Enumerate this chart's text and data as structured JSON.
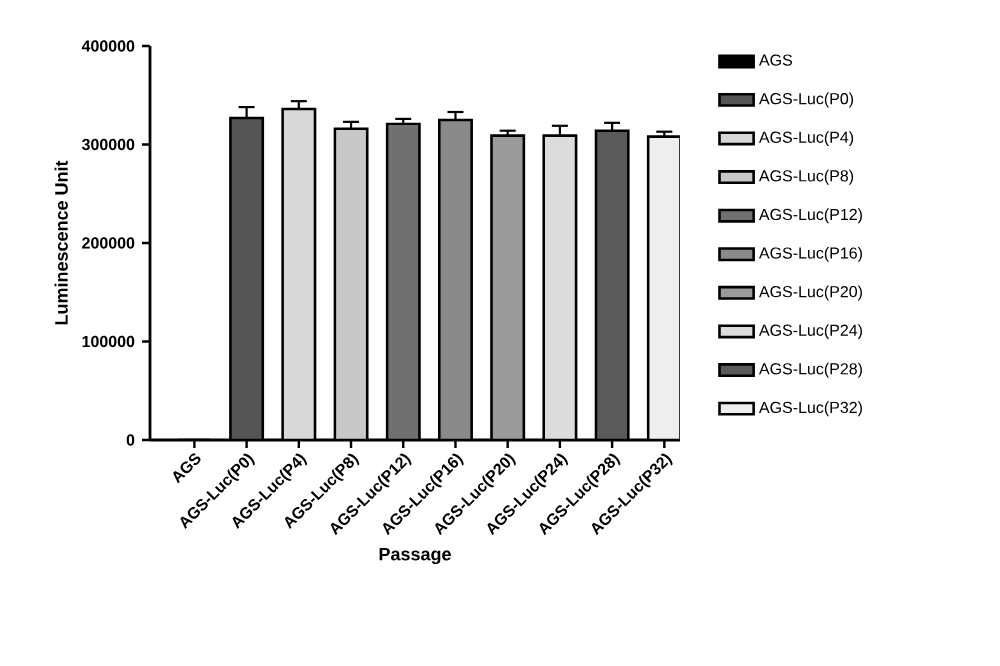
{
  "chart_data": {
    "type": "bar",
    "xlabel": "Passage",
    "ylabel": "Luminescence Unit",
    "categories": [
      "AGS",
      "AGS-Luc(P0)",
      "AGS-Luc(P4)",
      "AGS-Luc(P8)",
      "AGS-Luc(P12)",
      "AGS-Luc(P16)",
      "AGS-Luc(P20)",
      "AGS-Luc(P24)",
      "AGS-Luc(P28)",
      "AGS-Luc(P32)"
    ],
    "series": [
      {
        "name": "AGS",
        "color": "#000000",
        "values": [
          0,
          null,
          null,
          null,
          null,
          null,
          null,
          null,
          null,
          null
        ],
        "errors": [
          null,
          null,
          null,
          null,
          null,
          null,
          null,
          null,
          null,
          null
        ]
      },
      {
        "name": "AGS-Luc(P0)",
        "color": "#555555",
        "values": [
          null,
          327000,
          null,
          null,
          null,
          null,
          null,
          null,
          null,
          null
        ],
        "errors": [
          null,
          11000,
          null,
          null,
          null,
          null,
          null,
          null,
          null,
          null
        ]
      },
      {
        "name": "AGS-Luc(P4)",
        "color": "#d8d8d8",
        "values": [
          null,
          null,
          336000,
          null,
          null,
          null,
          null,
          null,
          null,
          null
        ],
        "errors": [
          null,
          null,
          8000,
          null,
          null,
          null,
          null,
          null,
          null,
          null
        ]
      },
      {
        "name": "AGS-Luc(P8)",
        "color": "#c8c8c8",
        "values": [
          null,
          null,
          null,
          316000,
          null,
          null,
          null,
          null,
          null,
          null
        ],
        "errors": [
          null,
          null,
          null,
          7000,
          null,
          null,
          null,
          null,
          null,
          null
        ]
      },
      {
        "name": "AGS-Luc(P12)",
        "color": "#707070",
        "values": [
          null,
          null,
          null,
          null,
          321000,
          null,
          null,
          null,
          null,
          null
        ],
        "errors": [
          null,
          null,
          null,
          null,
          5000,
          null,
          null,
          null,
          null,
          null
        ]
      },
      {
        "name": "AGS-Luc(P16)",
        "color": "#8a8a8a",
        "values": [
          null,
          null,
          null,
          null,
          null,
          325000,
          null,
          null,
          null,
          null
        ],
        "errors": [
          null,
          null,
          null,
          null,
          null,
          8000,
          null,
          null,
          null,
          null
        ]
      },
      {
        "name": "AGS-Luc(P20)",
        "color": "#9a9a9a",
        "values": [
          null,
          null,
          null,
          null,
          null,
          null,
          309000,
          null,
          null,
          null
        ],
        "errors": [
          null,
          null,
          null,
          null,
          null,
          null,
          5000,
          null,
          null,
          null
        ]
      },
      {
        "name": "AGS-Luc(P24)",
        "color": "#dcdcdc",
        "values": [
          null,
          null,
          null,
          null,
          null,
          null,
          null,
          309000,
          null,
          null
        ],
        "errors": [
          null,
          null,
          null,
          null,
          null,
          null,
          null,
          10000,
          null,
          null
        ]
      },
      {
        "name": "AGS-Luc(P28)",
        "color": "#5a5a5a",
        "values": [
          null,
          null,
          null,
          null,
          null,
          null,
          null,
          null,
          314000,
          null
        ],
        "errors": [
          null,
          null,
          null,
          null,
          null,
          null,
          null,
          null,
          8000,
          null
        ]
      },
      {
        "name": "AGS-Luc(P32)",
        "color": "#eeeeee",
        "values": [
          null,
          null,
          null,
          null,
          null,
          null,
          null,
          null,
          null,
          308000
        ],
        "errors": [
          null,
          null,
          null,
          null,
          null,
          null,
          null,
          null,
          null,
          5000
        ]
      }
    ],
    "ylim": [
      0,
      400000
    ],
    "yticks": [
      0,
      100000,
      200000,
      300000,
      400000
    ],
    "legend": "right"
  }
}
